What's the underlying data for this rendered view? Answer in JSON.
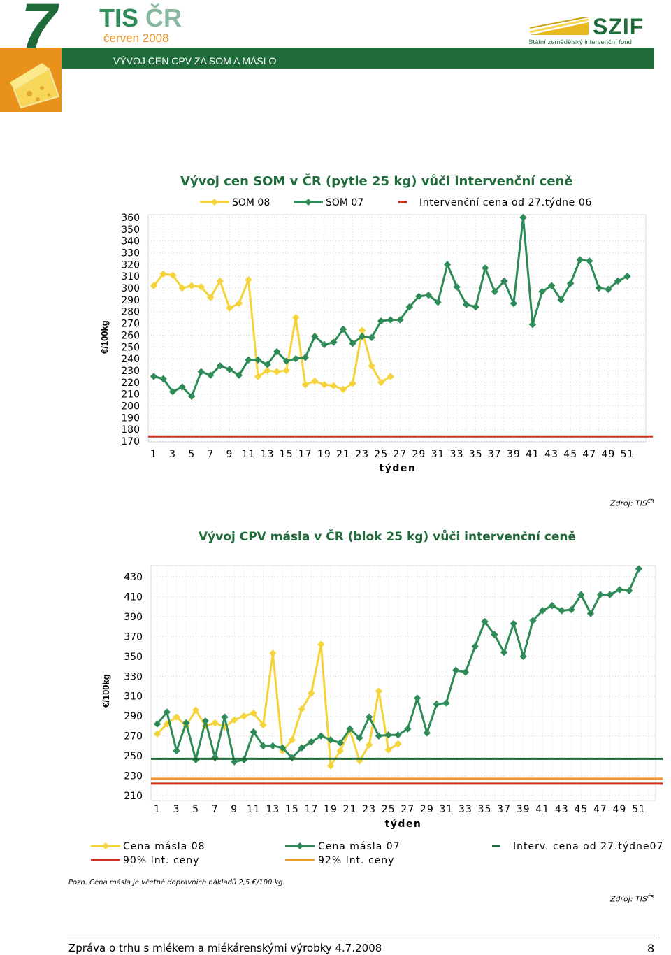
{
  "header": {
    "chapter": "7",
    "title_main": "TIS ",
    "title_accent": "ČR",
    "date": "červen 2008",
    "subtitle": "VÝVOJ CEN CPV ZA SOM A MÁSLO",
    "logo_name": "SZIF",
    "logo_caption": "Státní zemědělský intervenční fond"
  },
  "chart1": {
    "title": "Vývoj cen SOM v ČR (pytle 25 kg) vůči intervenční ceně",
    "ylabel": "€/100kg",
    "xlabel": "týden",
    "legend": [
      "SOM 08",
      "SOM 07",
      "Intervenční cena od 27.týdne 06"
    ],
    "source": "Zdroj: TIS",
    "source_sup": "ČR"
  },
  "chart2": {
    "title": "Vývoj CPV másla v ČR (blok 25 kg) vůči intervenční ceně",
    "ylabel": "€/100kg",
    "xlabel": "týden",
    "legend": [
      "Cena másla 08",
      "Cena másla 07",
      "Interv. cena od 27.týdne07",
      "90% Int. ceny",
      "92% Int. ceny"
    ],
    "note": "Pozn. Cena másla je včetně dopravních nákladů 2,5 €/100 kg.",
    "source": "Zdroj: TIS",
    "source_sup": "ČR"
  },
  "footer": {
    "text": "Zpráva o trhu s mlékem a mlékárenskými výrobky 4.7.2008",
    "page": "8"
  },
  "chart_data": [
    {
      "type": "line",
      "title": "Vývoj cen SOM v ČR (pytle 25 kg) vůči intervenční ceně",
      "xlabel": "týden",
      "ylabel": "€/100kg",
      "ylim": [
        170,
        360
      ],
      "xlim": [
        1,
        52
      ],
      "x_ticks": [
        1,
        3,
        5,
        7,
        9,
        11,
        13,
        15,
        17,
        19,
        21,
        23,
        25,
        27,
        29,
        31,
        33,
        35,
        37,
        39,
        41,
        43,
        45,
        47,
        49,
        51
      ],
      "y_ticks": [
        170,
        180,
        190,
        200,
        210,
        220,
        230,
        240,
        250,
        260,
        270,
        280,
        290,
        300,
        310,
        320,
        330,
        340,
        350,
        360
      ],
      "grid": true,
      "legend_position": "top",
      "series": [
        {
          "name": "SOM 08",
          "color": "#f5d33b",
          "values": [
            302,
            312,
            311,
            300,
            302,
            301,
            292,
            306,
            283,
            287,
            307,
            225,
            230,
            229,
            230,
            275,
            218,
            221,
            218,
            217,
            214,
            219,
            264,
            234,
            220,
            225
          ]
        },
        {
          "name": "SOM 07",
          "color": "#2e8b57",
          "values": [
            225,
            223,
            212,
            216,
            208,
            229,
            226,
            234,
            231,
            226,
            239,
            239,
            235,
            246,
            238,
            240,
            241,
            259,
            252,
            254,
            265,
            253,
            259,
            258,
            272,
            273,
            273,
            284,
            293,
            294,
            288,
            320,
            301,
            286,
            284,
            317,
            297,
            306,
            287,
            360,
            269,
            297,
            302,
            290,
            304,
            324,
            323,
            300,
            299,
            306,
            310
          ]
        },
        {
          "name": "Intervenční cena od 27.týdne 06",
          "color": "#c8321e",
          "values": [
            174
          ]
        }
      ]
    },
    {
      "type": "line",
      "title": "Vývoj CPV másla v ČR (blok 25 kg) vůči intervenční ceně",
      "xlabel": "týden",
      "ylabel": "€/100kg",
      "ylim": [
        210,
        430
      ],
      "xlim": [
        1,
        52
      ],
      "x_ticks": [
        1,
        3,
        5,
        7,
        9,
        11,
        13,
        15,
        17,
        19,
        21,
        23,
        25,
        27,
        29,
        31,
        33,
        35,
        37,
        39,
        41,
        43,
        45,
        47,
        49,
        51
      ],
      "y_ticks": [
        210,
        230,
        250,
        270,
        290,
        310,
        330,
        350,
        370,
        390,
        410,
        430
      ],
      "grid": true,
      "legend_position": "bottom",
      "series": [
        {
          "name": "Cena másla 08",
          "color": "#f5d33b",
          "values": [
            272,
            282,
            289,
            280,
            296,
            280,
            283,
            279,
            286,
            290,
            293,
            281,
            353,
            255,
            266,
            297,
            313,
            362,
            240,
            255,
            276,
            245,
            261,
            315,
            256,
            262
          ]
        },
        {
          "name": "Cena másla 07",
          "color": "#2e8b57",
          "values": [
            282,
            294,
            255,
            283,
            246,
            285,
            248,
            289,
            244,
            246,
            274,
            260,
            260,
            258,
            248,
            258,
            264,
            270,
            266,
            263,
            277,
            268,
            289,
            270,
            271,
            271,
            277,
            308,
            273,
            302,
            303,
            336,
            334,
            360,
            385,
            372,
            354,
            383,
            350,
            386,
            396,
            401,
            396,
            397,
            412,
            393,
            412,
            412,
            417,
            416,
            438
          ]
        },
        {
          "name": "Interv. cena od 27.týdne07",
          "color": "#1f6b3a",
          "values": [
            247
          ]
        },
        {
          "name": "90% Int. ceny",
          "color": "#c8321e",
          "values": [
            222
          ]
        },
        {
          "name": "92% Int. ceny",
          "color": "#f0962c",
          "values": [
            227
          ]
        }
      ]
    }
  ]
}
